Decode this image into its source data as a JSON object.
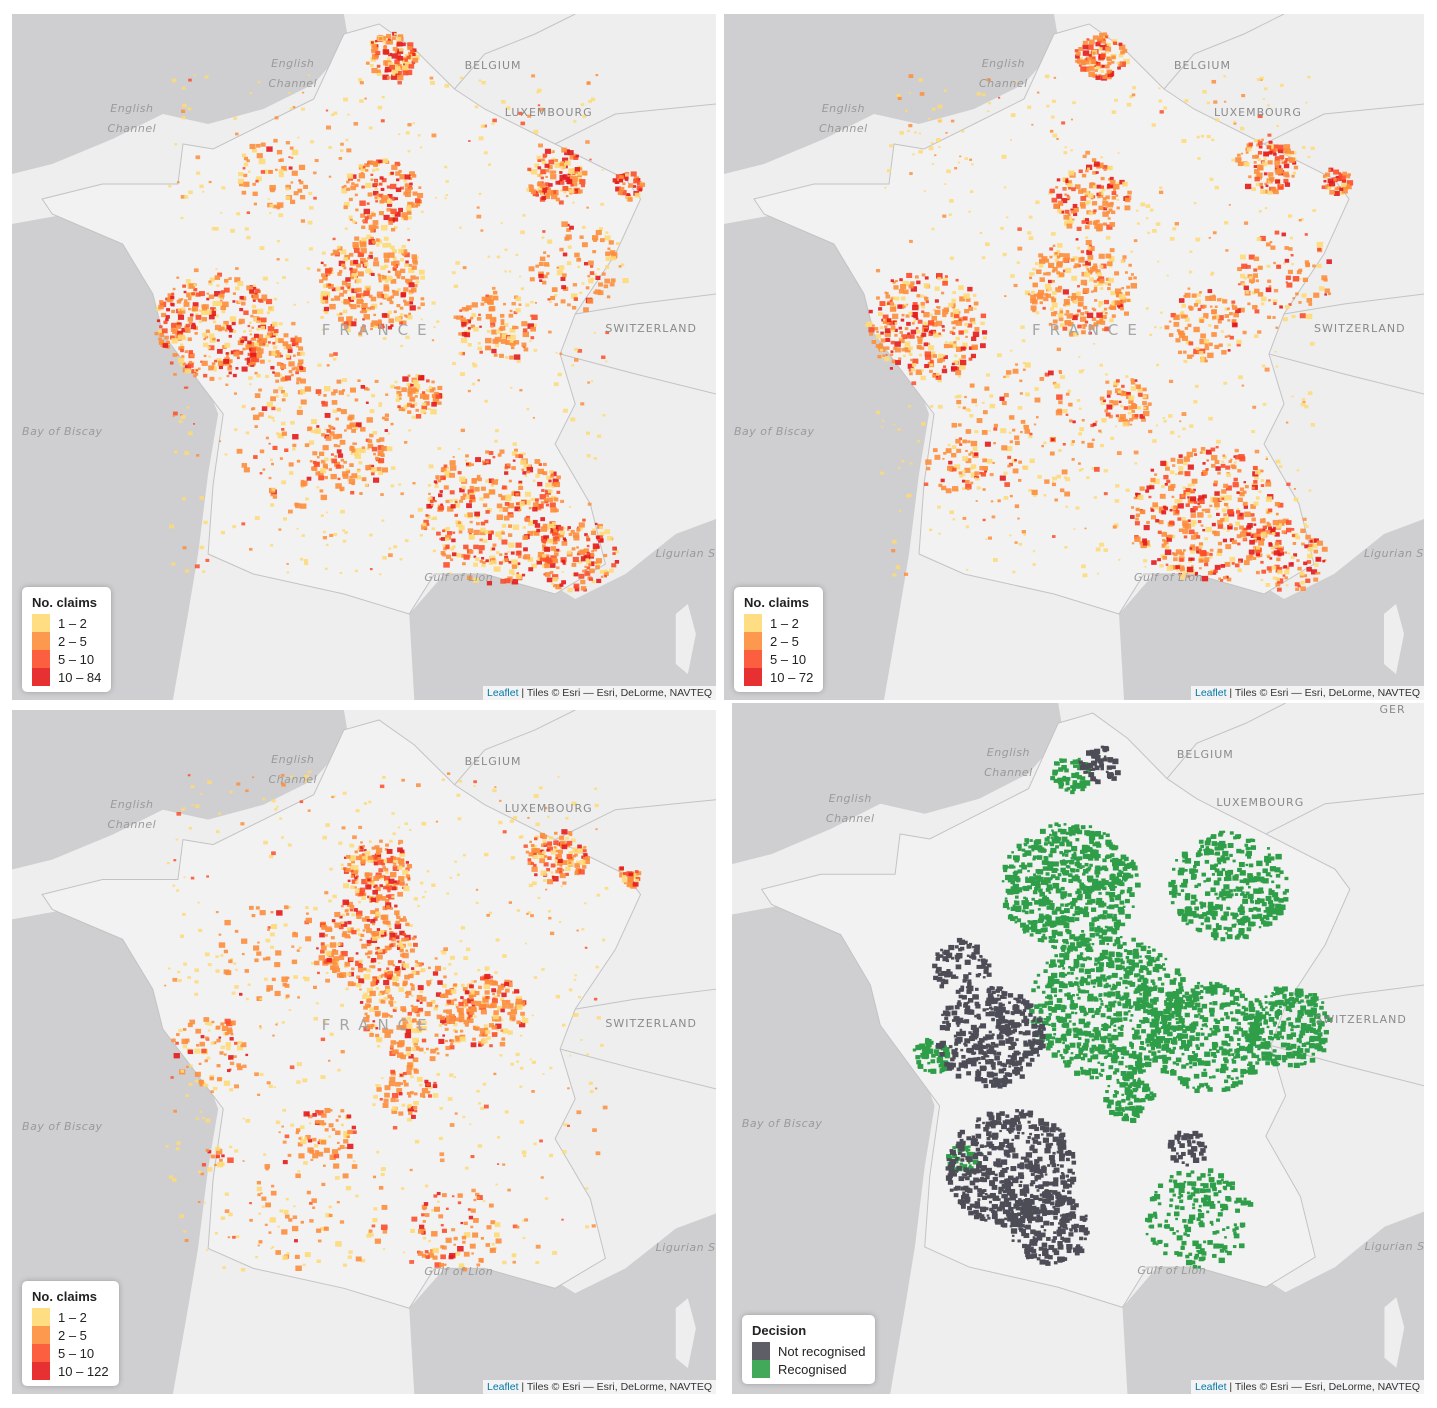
{
  "panels": [
    {
      "id": "p1",
      "seed": 11,
      "legend": {
        "title": "No. claims",
        "items": [
          {
            "label": "1 – 2",
            "color": "#fed976"
          },
          {
            "label": "2 – 5",
            "color": "#fd8d3c"
          },
          {
            "label": "5 – 10",
            "color": "#fc4e2a"
          },
          {
            "label": "10 – 84",
            "color": "#e31a1c"
          }
        ]
      },
      "place_labels": {
        "english_channel": "English\nChannel",
        "belgium": "BELGIUM",
        "luxembourg": "LUXEMBOURG",
        "english_channel_2": "English\nChannel",
        "france": "FRANCE",
        "switzerland": "SWITZERLAND",
        "bay_of_biscay": "Bay of Biscay",
        "gulf_of_lion": "Gulf of Lion",
        "ligurian_sea": "Ligurian Se"
      }
    },
    {
      "id": "p2",
      "seed": 23,
      "legend": {
        "title": "No. claims",
        "items": [
          {
            "label": "1 – 2",
            "color": "#fed976"
          },
          {
            "label": "2 – 5",
            "color": "#fd8d3c"
          },
          {
            "label": "5 – 10",
            "color": "#fc4e2a"
          },
          {
            "label": "10 – 72",
            "color": "#e31a1c"
          }
        ]
      },
      "place_labels": {
        "english_channel": "English\nChannel",
        "belgium": "BELGIUM",
        "luxembourg": "LUXEMBOURG",
        "english_channel_2": "English\nChannel",
        "france": "FRANCE",
        "switzerland": "SWITZERLAND",
        "bay_of_biscay": "Bay of Biscay",
        "gulf_of_lion": "Gulf of Lion",
        "ligurian_sea": "Ligurian S"
      }
    },
    {
      "id": "p3",
      "seed": 37,
      "legend": {
        "title": "No. claims",
        "items": [
          {
            "label": "1 – 2",
            "color": "#fed976"
          },
          {
            "label": "2 – 5",
            "color": "#fd8d3c"
          },
          {
            "label": "5 – 10",
            "color": "#fc4e2a"
          },
          {
            "label": "10 – 122",
            "color": "#e31a1c"
          }
        ]
      },
      "place_labels": {
        "english_channel": "English\nChannel",
        "belgium": "BELGIUM",
        "luxembourg": "LUXEMBOURG",
        "english_channel_2": "English\nChannel",
        "france": "FRANCE",
        "switzerland": "SWITZERLAND",
        "bay_of_biscay": "Bay of Biscay",
        "gulf_of_lion": "Gulf of Lion",
        "ligurian_sea": "Ligurian Sea"
      }
    },
    {
      "id": "p4",
      "seed": 53,
      "legend": {
        "title": "Decision",
        "items": [
          {
            "label": "Not recognised",
            "color": "#4d4d57"
          },
          {
            "label": "Recognised",
            "color": "#2e9e48"
          }
        ]
      },
      "place_labels": {
        "english_channel": "English\nChannel",
        "belgium": "BELGIUM",
        "luxembourg": "LUXEMBOURG",
        "english_channel_2": "English\nChannel",
        "germany": "GER",
        "switzerland": "SWITZERLAND",
        "bay_of_biscay": "Bay of Biscay",
        "gulf_of_lion": "Gulf of Lion",
        "ligurian_sea": "Ligurian Sea"
      }
    }
  ],
  "attribution": {
    "link": "Leaflet",
    "text": " | Tiles © Esri — Esri, DeLorme, NAVTEQ"
  },
  "colors": {
    "sea": "#cfcfd1",
    "land": "#eeeeee",
    "border": "#c3c3c3"
  }
}
